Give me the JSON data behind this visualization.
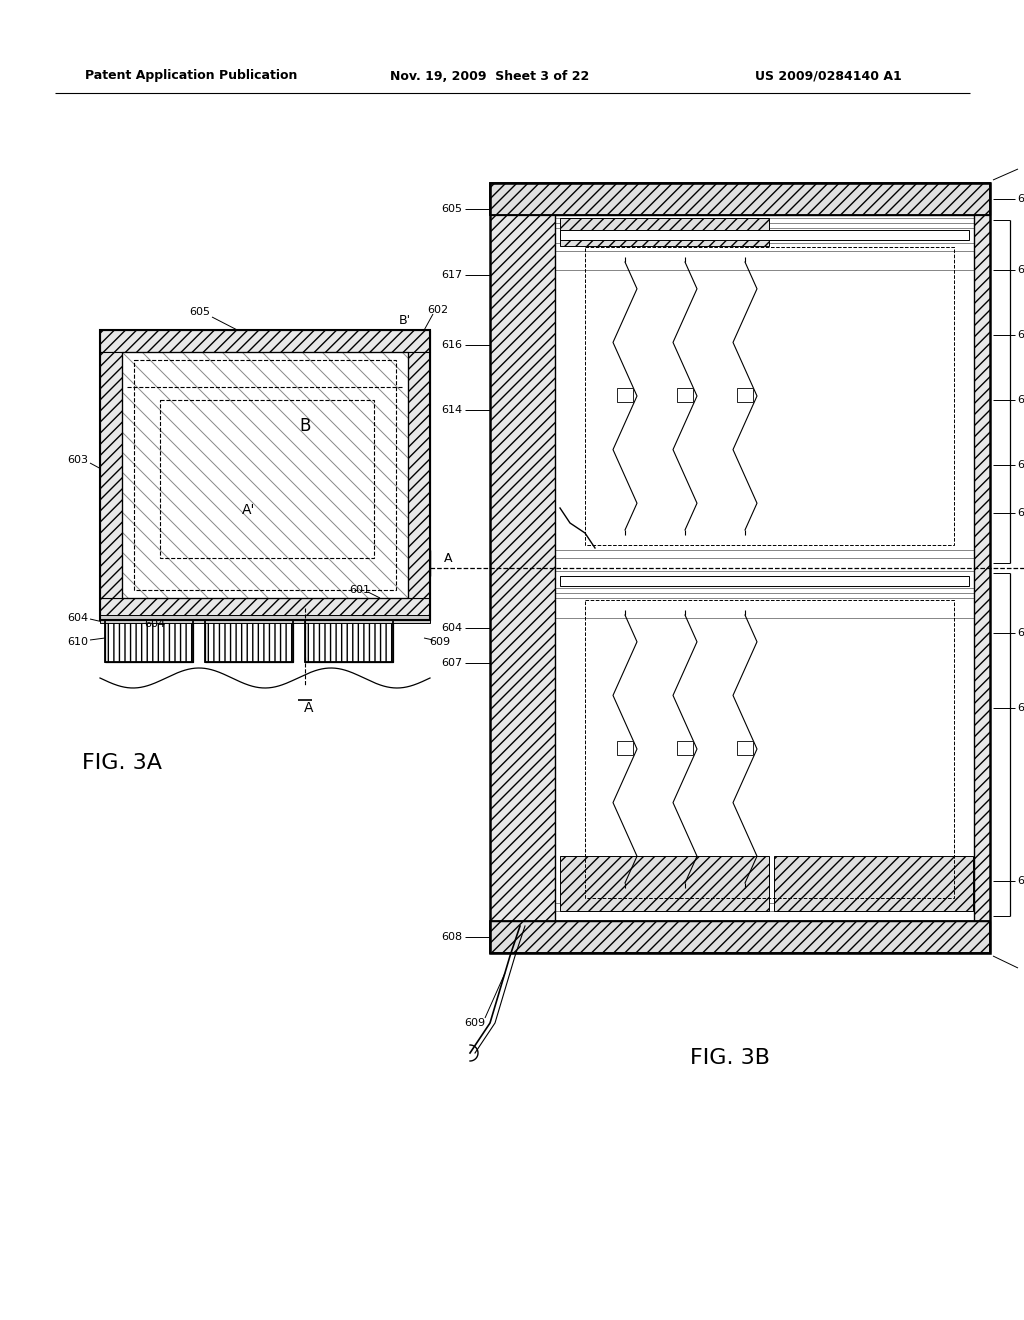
{
  "header_left": "Patent Application Publication",
  "header_mid": "Nov. 19, 2009  Sheet 3 of 22",
  "header_right": "US 2009/0284140 A1",
  "fig3a_label": "FIG. 3A",
  "fig3b_label": "FIG. 3B",
  "bg_color": "#ffffff"
}
